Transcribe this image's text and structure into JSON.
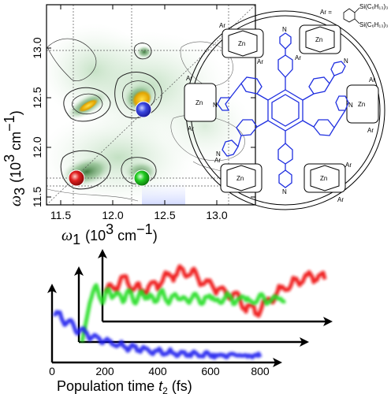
{
  "spectrum": {
    "x_ticks": [
      "11.5",
      "12.0",
      "12.5",
      "13.0"
    ],
    "y_ticks": [
      "11.5",
      "12.0",
      "12.5",
      "13.0"
    ],
    "x_label_symbol": "ω",
    "x_label_sub": "1",
    "x_label_unit_open": "(10",
    "x_label_unit_exp": "3",
    "x_label_unit_mid": " cm",
    "x_label_unit_exp2": "−1",
    "x_label_unit_close": ")",
    "y_label_symbol": "ω",
    "y_label_sub": "3",
    "y_label_unit_open": "(10",
    "y_label_unit_exp": "3",
    "y_label_unit_mid": " cm",
    "y_label_unit_exp2": "−1",
    "y_label_unit_close": ")",
    "dot_colors": {
      "blue": "#3344dd",
      "red": "#e02020",
      "green": "#22cc22"
    }
  },
  "molecule": {
    "ar_label": "Ar",
    "zn_label": "Zn",
    "n_label": "N",
    "substituent_top": "Si(C₆H₁₃)₃",
    "substituent_bottom": "Si(C₆H₁₃)₃",
    "ar_eq": "Ar = "
  },
  "traces": {
    "x_label_main": "Population time ",
    "x_label_var": "t",
    "x_label_sub": "2",
    "x_label_unit": " (fs)",
    "x_ticks": [
      "0",
      "200",
      "400",
      "600",
      "800"
    ],
    "colors": {
      "red": "#ee1111",
      "green": "#22dd22",
      "blue": "#1a1aee"
    }
  },
  "chart_data": {
    "type": "line",
    "xlabel": "Population time t2 (fs)",
    "x_ticks": [
      0,
      200,
      400,
      600,
      800
    ],
    "series": [
      {
        "color": "red"
      },
      {
        "color": "green"
      },
      {
        "color": "blue"
      }
    ]
  }
}
